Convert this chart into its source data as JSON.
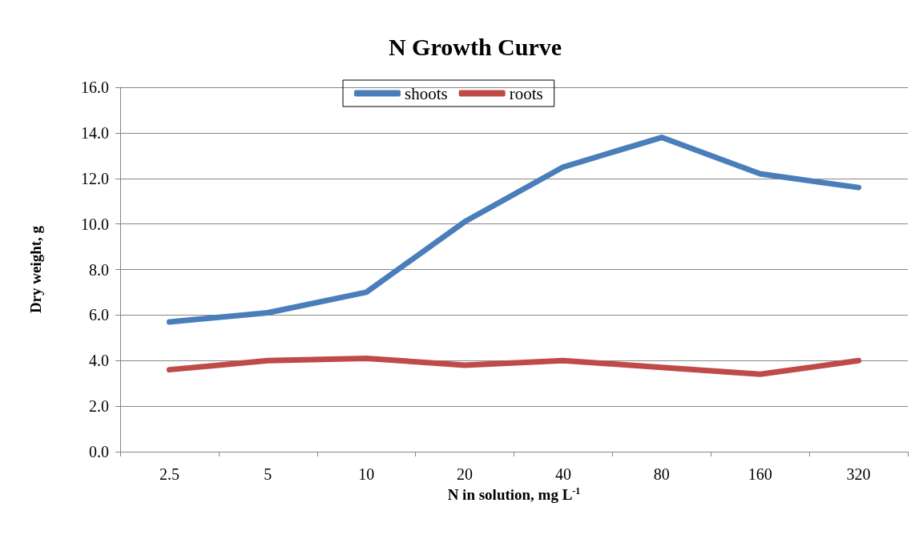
{
  "chart_data": {
    "type": "line",
    "title": "N Growth Curve",
    "xlabel": "N in solution, mg L$^{-1}$",
    "ylabel": "Dry weight, g",
    "categories": [
      "2.5",
      "5",
      "10",
      "20",
      "40",
      "80",
      "160",
      "320"
    ],
    "series": [
      {
        "name": "shoots",
        "color": "#4a7ebb",
        "values": [
          5.7,
          6.1,
          7.0,
          10.1,
          12.5,
          13.8,
          12.2,
          11.6
        ]
      },
      {
        "name": "roots",
        "color": "#be4b48",
        "values": [
          3.6,
          4.0,
          4.1,
          3.8,
          4.0,
          3.7,
          3.4,
          4.0
        ]
      }
    ],
    "ylim": [
      0,
      16
    ],
    "yticks": [
      {
        "value": 0,
        "label": "0.0"
      },
      {
        "value": 2,
        "label": "2.0"
      },
      {
        "value": 4,
        "label": "4.0"
      },
      {
        "value": 6,
        "label": "6.0"
      },
      {
        "value": 8,
        "label": "8.0"
      },
      {
        "value": 10,
        "label": "10.0"
      },
      {
        "value": 12,
        "label": "12.0"
      },
      {
        "value": 14,
        "label": "14.0"
      },
      {
        "value": 16,
        "label": "16.0"
      }
    ],
    "grid": "y",
    "legend": "top",
    "marker": "none",
    "line_style": "solid"
  }
}
